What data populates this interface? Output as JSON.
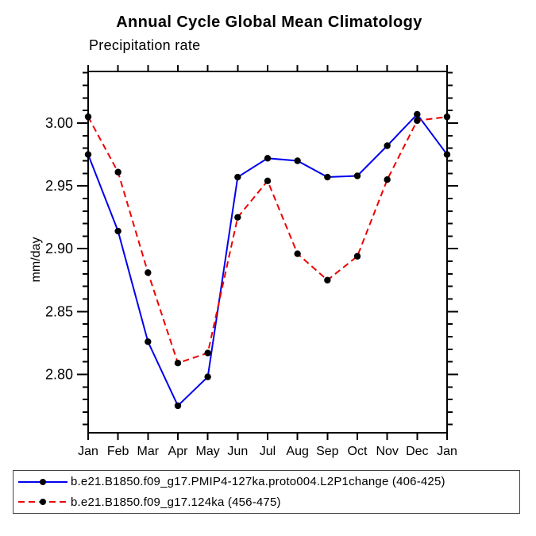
{
  "title": "Annual Cycle Global Mean Climatology",
  "subtitle": "Precipitation rate",
  "ylabel": "mm/day",
  "chart_data": {
    "type": "line",
    "categories": [
      "Jan",
      "Feb",
      "Mar",
      "Apr",
      "May",
      "Jun",
      "Jul",
      "Aug",
      "Sep",
      "Oct",
      "Nov",
      "Dec",
      "Jan"
    ],
    "series": [
      {
        "name": "b.e21.B1850.f09_g17.PMIP4-127ka.proto004.L2P1change (406-425)",
        "color": "#0000EE",
        "style": "solid",
        "marker": "filled-circle",
        "marker_color": "#000000",
        "values": [
          2.975,
          2.914,
          2.826,
          2.775,
          2.798,
          2.957,
          2.972,
          2.97,
          2.957,
          2.958,
          2.982,
          3.007,
          2.975
        ]
      },
      {
        "name": "b.e21.B1850.f09_g17.124ka (456-475)",
        "color": "#EE0000",
        "style": "dashed",
        "marker": "filled-circle",
        "marker_color": "#000000",
        "values": [
          3.005,
          2.961,
          2.881,
          2.809,
          2.817,
          2.925,
          2.954,
          2.896,
          2.875,
          2.894,
          2.955,
          3.002,
          3.005
        ]
      }
    ],
    "xlabel": "",
    "ylabel": "mm/day",
    "ylim": [
      2.7535,
      3.0411
    ],
    "y_major_ticks": [
      3.0,
      2.95,
      2.9,
      2.85,
      2.8
    ],
    "y_tick_labels": [
      "3.00",
      "2.95",
      "2.90",
      "2.85",
      "2.80"
    ],
    "y_minor_step": 0.01,
    "grid": false,
    "legend_position": "bottom",
    "frame_color": "#000000",
    "text_color": "#000000"
  }
}
